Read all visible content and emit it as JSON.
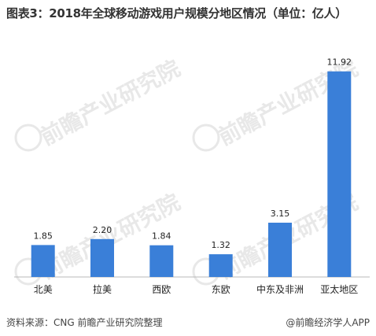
{
  "title": "图表3：2018年全球移动游戏用户规模分地区情况（单位：亿人）",
  "chart_data": {
    "type": "bar",
    "title": "图表3：2018年全球移动游戏用户规模分地区情况（单位：亿人）",
    "categories": [
      "北美",
      "拉美",
      "西欧",
      "东欧",
      "中东及非洲",
      "亚太地区"
    ],
    "values": [
      1.85,
      2.2,
      1.84,
      1.32,
      3.15,
      11.92
    ],
    "value_labels": [
      "1.85",
      "2.20",
      "1.84",
      "1.32",
      "3.15",
      "11.92"
    ],
    "ylim": [
      0,
      12.5
    ],
    "grid": false,
    "legend": "none",
    "bar_color": "#3a7fd8"
  },
  "watermark": "前瞻产业研究院",
  "footer": {
    "source": "资料来源：CNG 前瞻产业研究院整理",
    "brand_icon": "@",
    "brand": "前瞻经济学人APP"
  }
}
